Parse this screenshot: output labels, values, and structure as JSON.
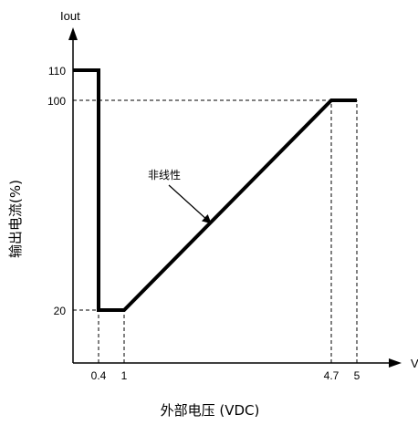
{
  "chart_data": {
    "type": "line",
    "x_axis_name": "V",
    "y_axis_name": "Iout",
    "xlabel": "外部电压 (VDC)",
    "ylabel": "输出电流(%)",
    "x_ticks": [
      "0.4",
      "1",
      "4.7",
      "5"
    ],
    "y_ticks": [
      "20",
      "100",
      "110"
    ],
    "annotation": "非线性",
    "series": [
      {
        "x": [
          0,
          0.4,
          0.4,
          1,
          4.7,
          5
        ],
        "y": [
          110,
          110,
          20,
          20,
          100,
          100
        ]
      }
    ],
    "guide_lines": [
      {
        "x": 0.4,
        "y": 20
      },
      {
        "x": 1,
        "y": 20
      },
      {
        "x": 4.7,
        "y": 100
      },
      {
        "x": 5,
        "y": 100
      }
    ],
    "line_color": "#000000"
  }
}
